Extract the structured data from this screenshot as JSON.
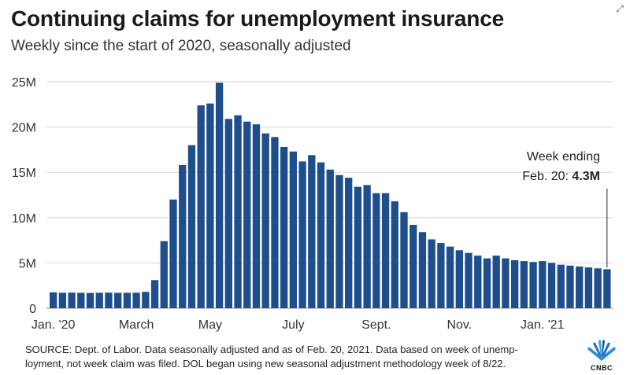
{
  "title": "Continuing claims for unemployment insurance",
  "subtitle": "Weekly since the start of 2020, seasonally adjusted",
  "chart_data": {
    "type": "bar",
    "title": "Continuing claims for unemployment insurance",
    "subtitle": "Weekly since the start of 2020, seasonally adjusted",
    "xlabel": "",
    "ylabel": "",
    "ylim": [
      0,
      25
    ],
    "y_unit": "millions",
    "y_ticks": [
      {
        "value": 0,
        "label": "0"
      },
      {
        "value": 5,
        "label": "5M"
      },
      {
        "value": 10,
        "label": "10M"
      },
      {
        "value": 15,
        "label": "15M"
      },
      {
        "value": 20,
        "label": "20M"
      },
      {
        "value": 25,
        "label": "25M"
      }
    ],
    "x_ticks": [
      {
        "index": 0,
        "label": "Jan. '20"
      },
      {
        "index": 9,
        "label": "March"
      },
      {
        "index": 17,
        "label": "May"
      },
      {
        "index": 26,
        "label": "July"
      },
      {
        "index": 35,
        "label": "Sept."
      },
      {
        "index": 44,
        "label": "Nov."
      },
      {
        "index": 53,
        "label": "Jan. '21"
      }
    ],
    "grid": true,
    "bar_color": "#1f4e8c",
    "values": [
      1.75,
      1.7,
      1.72,
      1.7,
      1.68,
      1.7,
      1.72,
      1.7,
      1.7,
      1.71,
      1.8,
      3.1,
      7.4,
      12.0,
      15.8,
      18.0,
      22.4,
      22.6,
      24.9,
      20.9,
      21.3,
      20.6,
      20.3,
      19.3,
      18.9,
      17.8,
      17.3,
      16.2,
      16.9,
      16.1,
      15.3,
      14.7,
      14.4,
      13.4,
      13.6,
      12.7,
      12.7,
      11.8,
      10.6,
      9.2,
      8.4,
      7.6,
      7.2,
      6.8,
      6.4,
      6.1,
      5.8,
      5.5,
      5.8,
      5.5,
      5.3,
      5.2,
      5.1,
      5.2,
      5.0,
      4.8,
      4.7,
      4.6,
      4.5,
      4.4,
      4.3
    ],
    "annotation": {
      "line1": "Week ending",
      "line2_prefix": "Feb. 20: ",
      "line2_value": "4.3M",
      "index": 60
    }
  },
  "footnote": {
    "line1": "SOURCE: Dept. of Labor. Data seasonally adjusted and as of Feb. 20, 2021. Data based on week of unemp-",
    "line2": "loyment, not week claim was filed. DOL began using new seasonal adjustment methodology week of 8/22."
  },
  "logo": {
    "text": "CNBC",
    "icon": "nbc-peacock-icon"
  }
}
